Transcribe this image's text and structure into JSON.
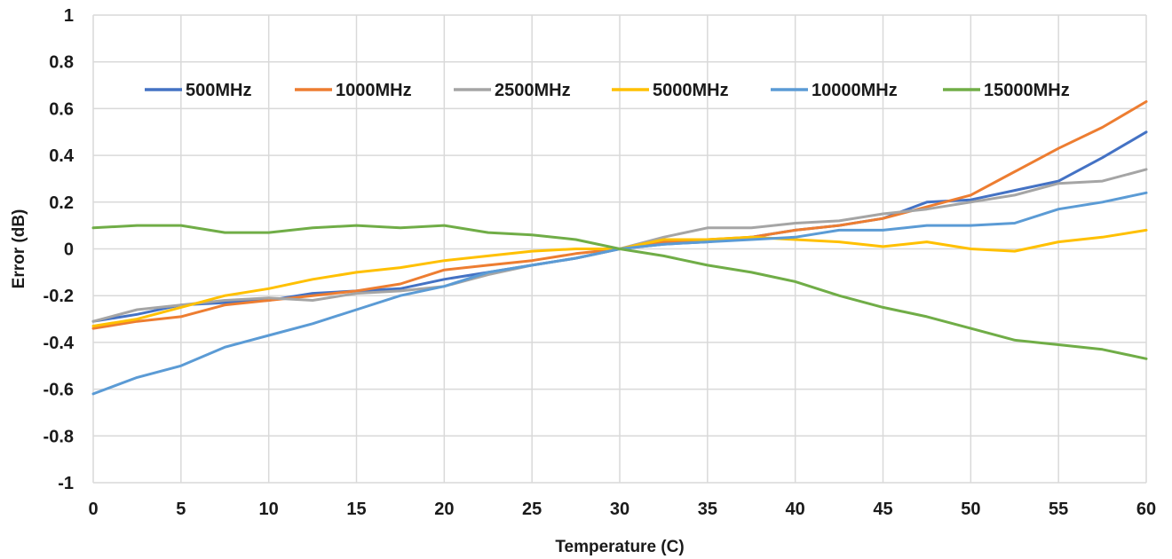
{
  "chart_data": {
    "type": "line",
    "title": "",
    "xlabel": "Temperature (C)",
    "ylabel": "Error (dB)",
    "xlim": [
      0,
      60
    ],
    "ylim": [
      -1,
      1
    ],
    "xticks": [
      0,
      5,
      10,
      15,
      20,
      25,
      30,
      35,
      40,
      45,
      50,
      55,
      60
    ],
    "yticks": [
      1,
      0.8,
      0.6,
      0.4,
      0.2,
      0,
      -0.2,
      -0.4,
      -0.6,
      -0.8,
      -1
    ],
    "xtick_labels": [
      "0",
      "5",
      "10",
      "15",
      "20",
      "25",
      "30",
      "35",
      "40",
      "45",
      "50",
      "55",
      "60"
    ],
    "ytick_labels": [
      "1",
      "0.8",
      "0.6",
      "0.4",
      "0.2",
      "0",
      "-0.2",
      "-0.4",
      "-0.6",
      "-0.8",
      "-1"
    ],
    "grid": true,
    "legend_position": "top",
    "x": [
      0,
      2.5,
      5,
      7.5,
      10,
      12.5,
      15,
      17.5,
      20,
      22.5,
      25,
      27.5,
      30,
      32.5,
      35,
      37.5,
      40,
      42.5,
      45,
      47.5,
      50,
      52.5,
      55,
      57.5,
      60
    ],
    "series": [
      {
        "name": "500MHz",
        "color": "#4472c4",
        "values": [
          -0.31,
          -0.28,
          -0.24,
          -0.23,
          -0.22,
          -0.19,
          -0.18,
          -0.17,
          -0.13,
          -0.1,
          -0.07,
          -0.04,
          0.0,
          0.02,
          0.03,
          0.05,
          0.08,
          0.1,
          0.13,
          0.2,
          0.21,
          0.25,
          0.29,
          0.39,
          0.5
        ]
      },
      {
        "name": "1000MHz",
        "color": "#ed7d31",
        "values": [
          -0.34,
          -0.31,
          -0.29,
          -0.24,
          -0.22,
          -0.2,
          -0.18,
          -0.15,
          -0.09,
          -0.07,
          -0.05,
          -0.02,
          0.0,
          0.03,
          0.04,
          0.05,
          0.08,
          0.1,
          0.13,
          0.18,
          0.23,
          0.33,
          0.43,
          0.52,
          0.63
        ]
      },
      {
        "name": "2500MHz",
        "color": "#a5a5a5",
        "values": [
          -0.31,
          -0.26,
          -0.24,
          -0.22,
          -0.21,
          -0.22,
          -0.19,
          -0.18,
          -0.16,
          -0.11,
          -0.07,
          -0.04,
          0.0,
          0.05,
          0.09,
          0.09,
          0.11,
          0.12,
          0.15,
          0.17,
          0.2,
          0.23,
          0.28,
          0.29,
          0.34
        ]
      },
      {
        "name": "5000MHz",
        "color": "#ffc000",
        "values": [
          -0.33,
          -0.3,
          -0.25,
          -0.2,
          -0.17,
          -0.13,
          -0.1,
          -0.08,
          -0.05,
          -0.03,
          -0.01,
          0.0,
          0.0,
          0.04,
          0.04,
          0.05,
          0.04,
          0.03,
          0.01,
          0.03,
          0.0,
          -0.01,
          0.03,
          0.05,
          0.08
        ]
      },
      {
        "name": "10000MHz",
        "color": "#5b9bd5",
        "values": [
          -0.62,
          -0.55,
          -0.5,
          -0.42,
          -0.37,
          -0.32,
          -0.26,
          -0.2,
          -0.16,
          -0.1,
          -0.07,
          -0.04,
          0.0,
          0.02,
          0.03,
          0.04,
          0.05,
          0.08,
          0.08,
          0.1,
          0.1,
          0.11,
          0.17,
          0.2,
          0.24
        ]
      },
      {
        "name": "15000MHz",
        "color": "#70ad47",
        "values": [
          0.09,
          0.1,
          0.1,
          0.07,
          0.07,
          0.09,
          0.1,
          0.09,
          0.1,
          0.07,
          0.06,
          0.04,
          0.0,
          -0.03,
          -0.07,
          -0.1,
          -0.14,
          -0.2,
          -0.25,
          -0.29,
          -0.34,
          -0.39,
          -0.41,
          -0.43,
          -0.47
        ]
      }
    ]
  }
}
